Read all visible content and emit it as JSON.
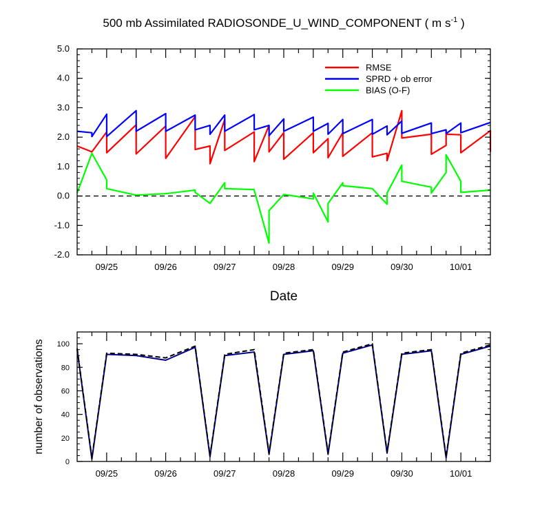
{
  "chart_data": [
    {
      "type": "line",
      "title": "500 mb Assimilated RADIOSONDE_U_WIND_COMPONENT ( m s",
      "title_sup": "-1",
      "title_end": " )",
      "xlabel": "Date",
      "ylabel": "",
      "ylim": [
        -2.0,
        5.0
      ],
      "xlim": [
        0,
        7.0
      ],
      "y_ticks": [
        "-2.0",
        "-1.0",
        "0.0",
        "1.0",
        "2.0",
        "3.0",
        "4.0",
        "5.0"
      ],
      "x_tick_labels": [
        "09/25",
        "09/26",
        "09/27",
        "09/28",
        "09/29",
        "09/30",
        "10/01"
      ],
      "legend_position": "top-right",
      "zero_line": "dashed",
      "series": [
        {
          "name": "RMSE",
          "color": "#ff0000",
          "x": [
            0,
            0.25,
            0.5,
            0.5,
            1.0,
            1.0,
            1.5,
            1.5,
            2.0,
            2.0,
            2.25,
            2.25,
            2.5,
            2.5,
            3.0,
            3.0,
            3.25,
            3.25,
            3.5,
            3.5,
            4.0,
            4.0,
            4.25,
            4.25,
            4.5,
            4.5,
            5.0,
            5.0,
            5.25,
            5.25,
            5.5,
            5.5,
            6.0,
            6.0,
            6.25,
            6.25,
            6.5,
            6.5,
            7.0,
            7.0
          ],
          "y": [
            1.7,
            1.5,
            2.18,
            1.47,
            2.42,
            1.43,
            2.38,
            1.28,
            2.7,
            1.58,
            1.7,
            1.1,
            2.6,
            1.55,
            2.18,
            1.17,
            2.4,
            1.5,
            2.15,
            1.25,
            2.15,
            1.47,
            1.95,
            1.3,
            2.15,
            1.35,
            2.15,
            1.33,
            1.45,
            1.2,
            2.9,
            1.97,
            2.1,
            1.42,
            1.72,
            2.1,
            2.08,
            1.47,
            2.22,
            1.5
          ]
        },
        {
          "name": "SPRD + ob error",
          "color": "#0000ff",
          "x": [
            0,
            0.25,
            0.25,
            0.5,
            0.5,
            1.0,
            1.0,
            1.5,
            1.5,
            2.0,
            2.0,
            2.25,
            2.25,
            2.5,
            2.5,
            3.0,
            3.0,
            3.25,
            3.25,
            3.5,
            3.5,
            4.0,
            4.0,
            4.25,
            4.25,
            4.5,
            4.5,
            5.0,
            5.0,
            5.25,
            5.25,
            5.5,
            5.5,
            6.0,
            6.0,
            6.25,
            6.25,
            6.5,
            6.5,
            7.0
          ],
          "y": [
            2.2,
            2.15,
            2.02,
            2.78,
            2.02,
            2.9,
            2.2,
            2.8,
            2.2,
            2.75,
            2.25,
            2.4,
            2.1,
            2.75,
            2.2,
            2.77,
            2.25,
            2.4,
            2.05,
            2.62,
            2.2,
            2.68,
            2.2,
            2.47,
            2.1,
            2.6,
            2.12,
            2.6,
            2.1,
            2.38,
            2.08,
            2.55,
            2.13,
            2.48,
            2.12,
            2.25,
            2.12,
            2.48,
            2.15,
            2.5
          ]
        },
        {
          "name": "BIAS (O-F)",
          "color": "#00ff00",
          "x": [
            0,
            0.25,
            0.5,
            0.5,
            1.0,
            1.5,
            2.0,
            2.0,
            2.25,
            2.5,
            2.5,
            3.0,
            3.0,
            3.25,
            3.25,
            3.5,
            3.5,
            4.0,
            4.0,
            4.25,
            4.25,
            4.5,
            4.5,
            5.0,
            5.0,
            5.25,
            5.25,
            5.5,
            5.5,
            6.0,
            6.0,
            6.25,
            6.25,
            6.5,
            6.5,
            7.0
          ],
          "y": [
            0.1,
            1.45,
            0.55,
            0.25,
            0.03,
            0.08,
            0.2,
            0.12,
            -0.25,
            0.45,
            0.25,
            0.22,
            0.2,
            -1.6,
            -0.5,
            0.05,
            0.05,
            -0.1,
            0.1,
            -0.88,
            -0.25,
            0.45,
            0.35,
            0.25,
            0.25,
            -0.28,
            0.1,
            1.05,
            0.5,
            0.3,
            0.1,
            0.8,
            1.4,
            0.5,
            0.12,
            0.2
          ]
        }
      ]
    },
    {
      "type": "line",
      "title": "",
      "xlabel": "",
      "ylabel": "number of observations",
      "ylim": [
        0,
        110
      ],
      "xlim": [
        0,
        7.0
      ],
      "y_ticks": [
        "0",
        "20",
        "40",
        "60",
        "80",
        "100"
      ],
      "x_tick_labels": [
        "09/25",
        "09/26",
        "09/27",
        "09/28",
        "09/29",
        "09/30",
        "10/01"
      ],
      "series": [
        {
          "style": "solid",
          "color": "#00008b",
          "x": [
            0,
            0.25,
            0.5,
            1.0,
            1.5,
            2.0,
            2.25,
            2.5,
            3.0,
            3.25,
            3.5,
            4.0,
            4.25,
            4.5,
            5.0,
            5.25,
            5.5,
            6.0,
            6.25,
            6.5,
            7.0
          ],
          "y": [
            95,
            2,
            91,
            90,
            86,
            97,
            4,
            90,
            93,
            6,
            91,
            94,
            6,
            92,
            99,
            7,
            91,
            94,
            3,
            91,
            98
          ]
        },
        {
          "style": "dashed",
          "color": "#000000",
          "x": [
            0,
            0.25,
            0.5,
            1.0,
            1.5,
            2.0,
            2.25,
            2.5,
            3.0,
            3.25,
            3.5,
            4.0,
            4.25,
            4.5,
            5.0,
            5.25,
            5.5,
            6.0,
            6.25,
            6.5,
            7.0
          ],
          "y": [
            96,
            3,
            92,
            91,
            88,
            98,
            5,
            91,
            95,
            7,
            92,
            95,
            7,
            93,
            100,
            8,
            92,
            95,
            4,
            92,
            99
          ]
        }
      ]
    }
  ]
}
